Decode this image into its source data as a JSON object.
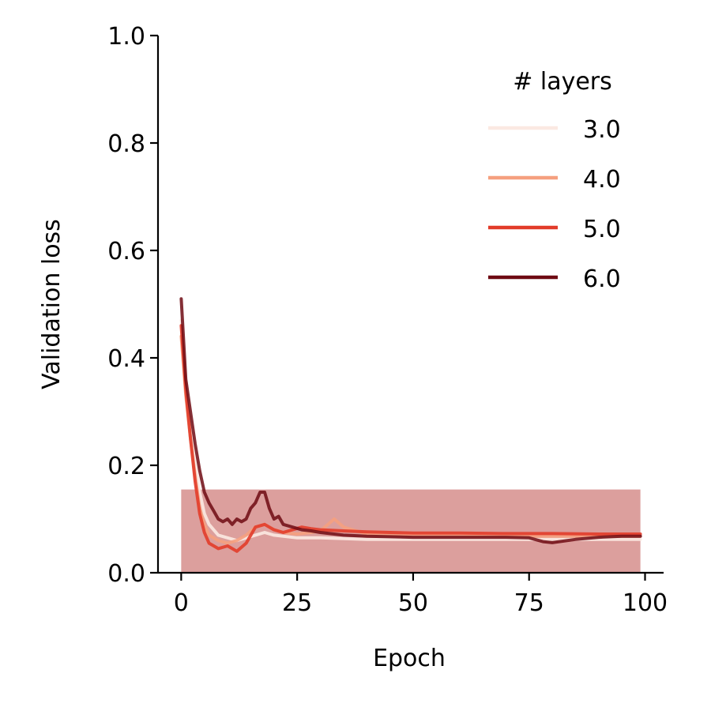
{
  "chart_data": {
    "type": "line",
    "xlabel": "Epoch",
    "ylabel": "Validation loss",
    "xlim": [
      -5,
      104
    ],
    "ylim": [
      0,
      1.0
    ],
    "xticks": [
      0,
      25,
      50,
      75,
      100
    ],
    "xtick_labels": [
      "0",
      "25",
      "50",
      "75",
      "100"
    ],
    "yticks": [
      0,
      0.2,
      0.4,
      0.6,
      0.8,
      1.0
    ],
    "ytick_labels": [
      "0.0",
      "0.2",
      "0.4",
      "0.6",
      "0.8",
      "1.0"
    ],
    "grid": false,
    "legend": {
      "title": "# layers",
      "placement": "top-right"
    },
    "band": {
      "x": [
        0,
        99
      ],
      "lower": 0.0,
      "upper": 0.155,
      "color": "#c0504d",
      "opacity": 0.55
    },
    "series": [
      {
        "name": "3.0",
        "color": "#fbe9e2",
        "x": [
          0,
          1,
          2,
          3,
          4,
          5,
          6,
          8,
          10,
          12,
          14,
          16,
          18,
          20,
          25,
          30,
          40,
          50,
          60,
          70,
          80,
          90,
          99
        ],
        "y": [
          0.47,
          0.36,
          0.28,
          0.21,
          0.15,
          0.11,
          0.09,
          0.07,
          0.065,
          0.06,
          0.065,
          0.07,
          0.075,
          0.07,
          0.065,
          0.065,
          0.062,
          0.062,
          0.062,
          0.062,
          0.062,
          0.062,
          0.062
        ]
      },
      {
        "name": "4.0",
        "color": "#f5a07f",
        "x": [
          0,
          1,
          2,
          3,
          4,
          5,
          6,
          8,
          10,
          12,
          14,
          16,
          18,
          20,
          22,
          25,
          28,
          30,
          33,
          35,
          40,
          50,
          60,
          70,
          80,
          90,
          99
        ],
        "y": [
          0.44,
          0.33,
          0.25,
          0.18,
          0.12,
          0.09,
          0.07,
          0.06,
          0.055,
          0.06,
          0.07,
          0.085,
          0.09,
          0.08,
          0.075,
          0.072,
          0.075,
          0.078,
          0.1,
          0.085,
          0.072,
          0.07,
          0.07,
          0.068,
          0.068,
          0.068,
          0.068
        ]
      },
      {
        "name": "5.0",
        "color": "#e23c2a",
        "x": [
          0,
          1,
          2,
          3,
          4,
          5,
          6,
          7,
          8,
          10,
          12,
          14,
          16,
          18,
          20,
          22,
          24,
          26,
          28,
          30,
          35,
          40,
          50,
          60,
          70,
          80,
          90,
          99
        ],
        "y": [
          0.46,
          0.34,
          0.25,
          0.17,
          0.11,
          0.075,
          0.055,
          0.05,
          0.045,
          0.05,
          0.04,
          0.055,
          0.085,
          0.09,
          0.08,
          0.075,
          0.08,
          0.085,
          0.082,
          0.08,
          0.078,
          0.076,
          0.074,
          0.074,
          0.073,
          0.073,
          0.072,
          0.072
        ]
      },
      {
        "name": "6.0",
        "color": "#6e0a13",
        "x": [
          0,
          1,
          2,
          3,
          4,
          5,
          6,
          7,
          8,
          9,
          10,
          11,
          12,
          13,
          14,
          15,
          16,
          17,
          18,
          19,
          20,
          21,
          22,
          24,
          26,
          28,
          30,
          35,
          40,
          45,
          50,
          55,
          60,
          65,
          70,
          75,
          78,
          80,
          85,
          90,
          95,
          99
        ],
        "y": [
          0.51,
          0.36,
          0.3,
          0.24,
          0.19,
          0.15,
          0.13,
          0.115,
          0.1,
          0.095,
          0.1,
          0.09,
          0.1,
          0.095,
          0.1,
          0.12,
          0.13,
          0.15,
          0.15,
          0.12,
          0.1,
          0.105,
          0.09,
          0.085,
          0.08,
          0.078,
          0.075,
          0.07,
          0.068,
          0.067,
          0.066,
          0.066,
          0.066,
          0.066,
          0.066,
          0.065,
          0.058,
          0.056,
          0.062,
          0.066,
          0.068,
          0.068
        ]
      }
    ]
  }
}
